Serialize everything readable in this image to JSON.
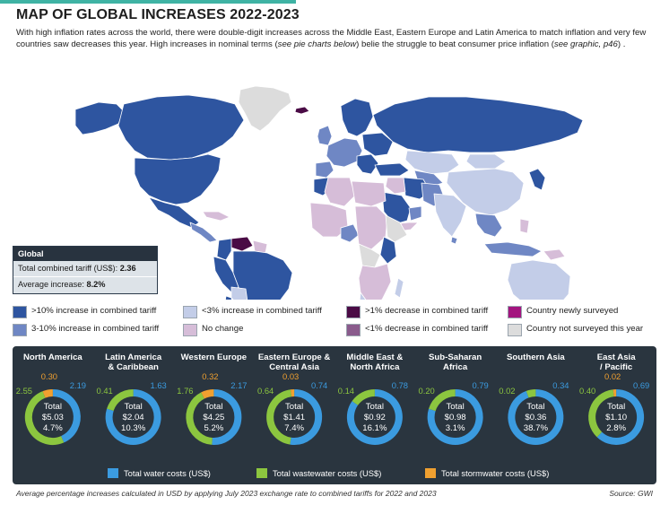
{
  "page": {
    "title": "MAP OF GLOBAL INCREASES 2022-2023",
    "intro_1": "With high inflation rates across the world, there were double-digit increases across the Middle East, Eastern Europe and Latin America to match inflation and very few countries saw decreases this year. High increases in nominal terms (",
    "intro_2": "see pie charts below",
    "intro_3": ") belie the struggle to beat consumer price inflation (",
    "intro_4": "see graphic, p46",
    "intro_5": ") .",
    "footnote": "Average percentage increases calculated in USD by applying July 2023 exchange rate to combined tariffs for 2022 and 2023",
    "source": "Source: GWI"
  },
  "global": {
    "heading": "Global",
    "tariff_label": "Total combined tariff (US$): ",
    "tariff_value": "2.36",
    "increase_label": "Average increase: ",
    "increase_value": "8.2%"
  },
  "legend": [
    {
      "label": ">10% increase in combined tariff",
      "color": "#2e55a0"
    },
    {
      "label": "3-10% increase in combined tariff",
      "color": "#6f87c4"
    },
    {
      "label": "<3% increase in combined tariff",
      "color": "#c3cde8"
    },
    {
      "label": "No change",
      "color": "#d6bdd8"
    },
    {
      "label": ">1% decrease in combined tariff",
      "color": "#4a0b45"
    },
    {
      "label": "<1% decrease in combined tariff",
      "color": "#8a5b8c"
    },
    {
      "label": "Country newly surveyed",
      "color": "#a3157f"
    },
    {
      "label": "Country not surveyed this year",
      "color": "#dcdcdc"
    }
  ],
  "chart_data": {
    "type": "pie",
    "series": [
      {
        "name": "Total water costs (US$)",
        "color": "#3b9be0"
      },
      {
        "name": "Total wastewater costs (US$)",
        "color": "#8cc63f"
      },
      {
        "name": "Total stormwater costs (US$)",
        "color": "#f0a030"
      }
    ],
    "regions": [
      {
        "name": "North America",
        "water": 2.19,
        "wastewater": 2.55,
        "stormwater": 0.3,
        "water_label": "2.19",
        "wastewater_label": "2.55",
        "stormwater_label": "0.30",
        "total_label": "Total",
        "total": "$5.03",
        "increase": "4.7%"
      },
      {
        "name": "Latin America & Caribbean",
        "water": 1.63,
        "wastewater": 0.41,
        "stormwater": 0,
        "water_label": "1.63",
        "wastewater_label": "0.41",
        "stormwater_label": "",
        "total_label": "Total",
        "total": "$2.04",
        "increase": "10.3%"
      },
      {
        "name": "Western Europe",
        "water": 2.17,
        "wastewater": 1.76,
        "stormwater": 0.32,
        "water_label": "2.17",
        "wastewater_label": "1.76",
        "stormwater_label": "0.32",
        "total_label": "Total",
        "total": "$4.25",
        "increase": "5.2%"
      },
      {
        "name": "Eastern Europe & Central Asia",
        "water": 0.74,
        "wastewater": 0.64,
        "stormwater": 0.03,
        "water_label": "0.74",
        "wastewater_label": "0.64",
        "stormwater_label": "0.03",
        "total_label": "Total",
        "total": "$1.41",
        "increase": "7.4%"
      },
      {
        "name": "Middle East & North Africa",
        "water": 0.78,
        "wastewater": 0.14,
        "stormwater": 0,
        "water_label": "0.78",
        "wastewater_label": "0.14",
        "stormwater_label": "",
        "total_label": "Total",
        "total": "$0.92",
        "increase": "16.1%"
      },
      {
        "name": "Sub-Saharan Africa",
        "water": 0.79,
        "wastewater": 0.2,
        "stormwater": 0,
        "water_label": "0.79",
        "wastewater_label": "0.20",
        "stormwater_label": "",
        "total_label": "Total",
        "total": "$0.98",
        "increase": "3.1%"
      },
      {
        "name": "Southern Asia",
        "water": 0.34,
        "wastewater": 0.02,
        "stormwater": 0,
        "water_label": "0.34",
        "wastewater_label": "0.02",
        "stormwater_label": "",
        "total_label": "Total",
        "total": "$0.36",
        "increase": "38.7%"
      },
      {
        "name": "East Asia / Pacific",
        "water": 0.69,
        "wastewater": 0.4,
        "stormwater": 0.02,
        "water_label": "0.69",
        "wastewater_label": "0.40",
        "stormwater_label": "0.02",
        "total_label": "Total",
        "total": "$1.10",
        "increase": "2.8%"
      }
    ]
  }
}
